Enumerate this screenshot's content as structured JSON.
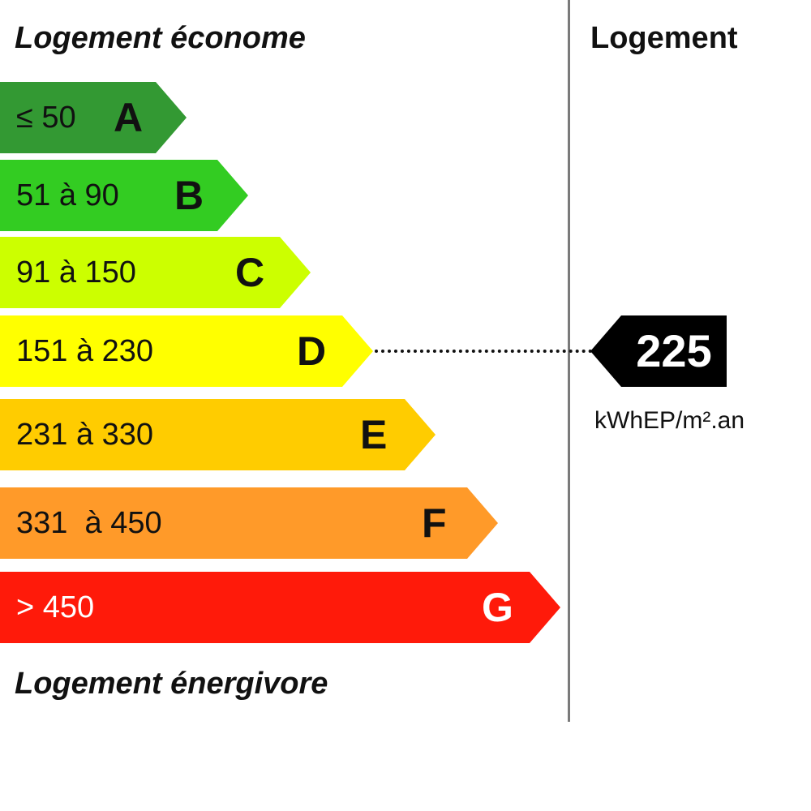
{
  "headings": {
    "top": "Logement économe",
    "bottom": "Logement énergivore",
    "column": "Logement"
  },
  "bands": [
    {
      "letter": "A",
      "range": "≤ 50",
      "color": "#339933"
    },
    {
      "letter": "B",
      "range": "51 à 90",
      "color": "#33cc22"
    },
    {
      "letter": "C",
      "range": "91 à 150",
      "color": "#ccff00"
    },
    {
      "letter": "D",
      "range": "151 à 230",
      "color": "#ffff00"
    },
    {
      "letter": "E",
      "range": "231 à 330",
      "color": "#ffcc00"
    },
    {
      "letter": "F",
      "range": "331  à 450",
      "color": "#ff9a29"
    },
    {
      "letter": "G",
      "range": "> 450",
      "color": "#ff1a0a"
    }
  ],
  "rating": {
    "value": "225",
    "unit": "kWhEP/m².an",
    "class": "D",
    "color": "#000000"
  }
}
